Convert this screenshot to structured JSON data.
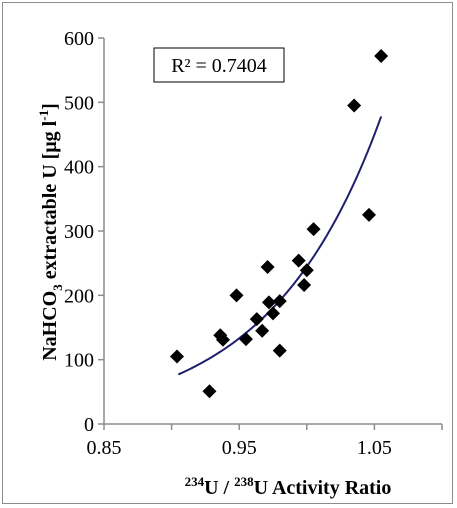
{
  "chart_data": {
    "type": "scatter",
    "title": "",
    "xlabel": {
      "sup1": "234",
      "a": "U / ",
      "sup2": "238",
      "b": "U Activity Ratio"
    },
    "ylabel": {
      "a": "NaHCO",
      "sub": "3",
      "b": " extractable U [μg l",
      "sup": "-1",
      "c": "]"
    },
    "xlim": [
      0.85,
      1.1
    ],
    "ylim": [
      0,
      600
    ],
    "x_ticks": [
      "0.85",
      "0.95",
      "1.05"
    ],
    "x_tick_values": [
      0.85,
      0.95,
      1.05
    ],
    "y_ticks": [
      "0",
      "100",
      "200",
      "300",
      "400",
      "500",
      "600"
    ],
    "y_tick_values": [
      0,
      100,
      200,
      300,
      400,
      500,
      600
    ],
    "grid": false,
    "annotation": "R² = 0.7404",
    "marker_color": "#000000",
    "trend_color": "#1f1f6e",
    "trendline": {
      "type": "exponential",
      "x_range": [
        0.905,
        1.055
      ],
      "y_range": [
        77,
        478
      ]
    },
    "series": [
      {
        "points": [
          [
            0.904,
            105
          ],
          [
            0.928,
            51
          ],
          [
            0.936,
            138
          ],
          [
            0.938,
            131
          ],
          [
            0.948,
            200
          ],
          [
            0.955,
            132
          ],
          [
            0.963,
            163
          ],
          [
            0.967,
            145
          ],
          [
            0.971,
            244
          ],
          [
            0.972,
            189
          ],
          [
            0.975,
            172
          ],
          [
            0.98,
            191
          ],
          [
            0.98,
            114
          ],
          [
            0.994,
            254
          ],
          [
            0.998,
            216
          ],
          [
            1.0,
            239
          ],
          [
            1.005,
            303
          ],
          [
            1.035,
            495
          ],
          [
            1.046,
            325
          ],
          [
            1.055,
            572
          ]
        ]
      }
    ]
  }
}
